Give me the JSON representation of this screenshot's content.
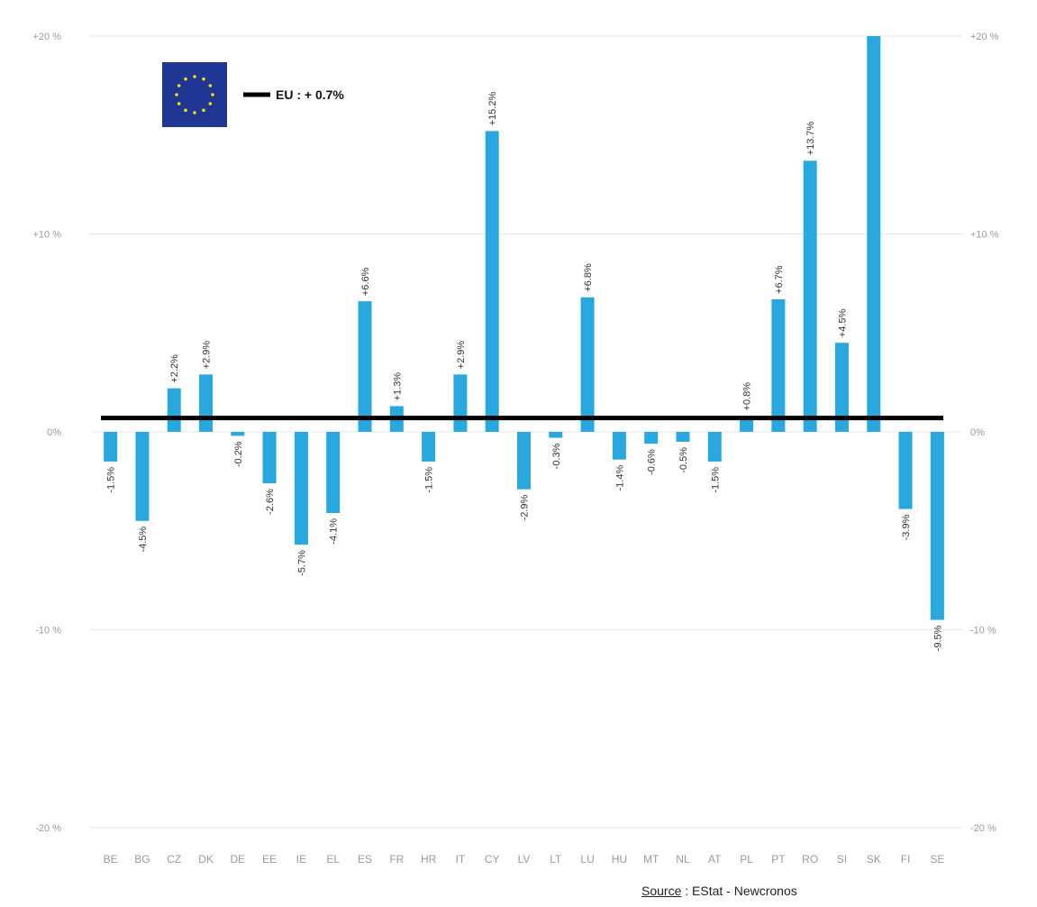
{
  "chart_data": {
    "type": "bar",
    "categories": [
      "BE",
      "BG",
      "CZ",
      "DK",
      "DE",
      "EE",
      "IE",
      "EL",
      "ES",
      "FR",
      "HR",
      "IT",
      "CY",
      "LV",
      "LT",
      "LU",
      "HU",
      "MT",
      "NL",
      "AT",
      "PL",
      "PT",
      "RO",
      "SI",
      "SK",
      "FI",
      "SE"
    ],
    "values": [
      -1.5,
      -4.5,
      2.2,
      2.9,
      -0.2,
      -2.6,
      -5.7,
      -4.1,
      6.6,
      1.3,
      -1.5,
      2.9,
      15.2,
      -2.9,
      -0.3,
      6.8,
      -1.4,
      -0.6,
      -0.5,
      -1.5,
      0.8,
      6.7,
      13.7,
      4.5,
      20.0,
      -3.9,
      -9.5
    ],
    "labels": [
      "-1.5%",
      "-4.5%",
      "+2.2%",
      "+2.9%",
      "-0.2%",
      "-2.6%",
      "-5.7%",
      "-4.1%",
      "+6.6%",
      "+1.3%",
      "-1.5%",
      "+2.9%",
      "+15.2%",
      "-2.9%",
      "-0.3%",
      "+6.8%",
      "-1.4%",
      "-0.6%",
      "-0.5%",
      "-1.5%",
      "+0.8%",
      "+6.7%",
      "+13.7%",
      "+4.5%",
      "",
      "-3.9%",
      "-9.5%"
    ],
    "reference_line": {
      "label": "EU : + 0.7%",
      "value": 0.7,
      "color": "#000000"
    },
    "yticks": [
      20,
      10,
      0,
      -10,
      -20
    ],
    "ytick_labels": [
      "+20 %",
      "+10 %",
      "0%",
      "-10 %",
      "-20 %"
    ],
    "ylim": [
      -20,
      20
    ],
    "grid": true,
    "bar_color": "#29a8e0",
    "legend_placement": "top-left",
    "legend_icon": "eu-flag-icon",
    "flag_color": "#1f3694",
    "star_color": "#ffdd00"
  },
  "source": {
    "key": "Source",
    "sep": " :",
    "value": "EStat - Newcronos"
  }
}
